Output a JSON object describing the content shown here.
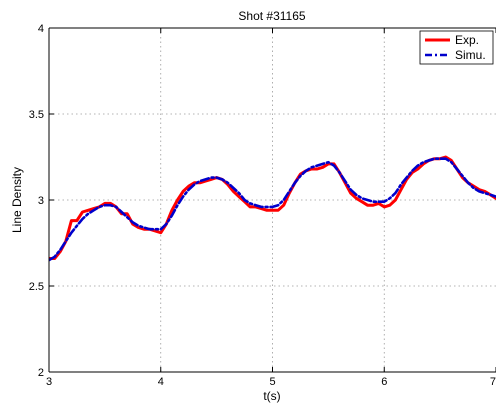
{
  "chart_data": {
    "type": "line",
    "title": "Shot #31165",
    "xlabel": "t(s)",
    "ylabel": "Line Density",
    "xlim": [
      3,
      7
    ],
    "ylim": [
      2,
      4
    ],
    "xticks": [
      "3",
      "4",
      "5",
      "6",
      "7"
    ],
    "yticks": [
      "2",
      "2.5",
      "3",
      "3.5",
      "4"
    ],
    "grid": true,
    "legend_position": "top-right",
    "series": [
      {
        "name": "Exp.",
        "color": "#ff0000",
        "style": "solid",
        "x": [
          3.0,
          3.05,
          3.1,
          3.15,
          3.2,
          3.25,
          3.3,
          3.35,
          3.4,
          3.45,
          3.5,
          3.55,
          3.6,
          3.65,
          3.7,
          3.75,
          3.8,
          3.85,
          3.9,
          3.95,
          4.0,
          4.05,
          4.1,
          4.15,
          4.2,
          4.25,
          4.3,
          4.35,
          4.4,
          4.45,
          4.5,
          4.55,
          4.6,
          4.65,
          4.7,
          4.75,
          4.8,
          4.85,
          4.9,
          4.95,
          5.0,
          5.05,
          5.1,
          5.15,
          5.2,
          5.25,
          5.3,
          5.35,
          5.4,
          5.45,
          5.5,
          5.55,
          5.6,
          5.65,
          5.7,
          5.75,
          5.8,
          5.85,
          5.9,
          5.95,
          6.0,
          6.05,
          6.1,
          6.15,
          6.2,
          6.25,
          6.3,
          6.35,
          6.4,
          6.45,
          6.5,
          6.55,
          6.6,
          6.65,
          6.7,
          6.75,
          6.8,
          6.85,
          6.9,
          6.95,
          7.0
        ],
        "y": [
          2.66,
          2.66,
          2.7,
          2.76,
          2.88,
          2.88,
          2.93,
          2.94,
          2.95,
          2.96,
          2.98,
          2.98,
          2.96,
          2.92,
          2.92,
          2.86,
          2.84,
          2.83,
          2.83,
          2.82,
          2.81,
          2.86,
          2.94,
          3.0,
          3.05,
          3.08,
          3.1,
          3.1,
          3.11,
          3.12,
          3.13,
          3.12,
          3.09,
          3.05,
          3.02,
          2.99,
          2.96,
          2.96,
          2.95,
          2.94,
          2.94,
          2.94,
          2.97,
          3.04,
          3.1,
          3.15,
          3.17,
          3.18,
          3.18,
          3.19,
          3.21,
          3.21,
          3.16,
          3.1,
          3.04,
          3.01,
          2.99,
          2.97,
          2.97,
          2.98,
          2.96,
          2.97,
          3.0,
          3.06,
          3.12,
          3.16,
          3.18,
          3.21,
          3.23,
          3.24,
          3.24,
          3.25,
          3.23,
          3.18,
          3.13,
          3.1,
          3.08,
          3.06,
          3.05,
          3.03,
          3.01
        ]
      },
      {
        "name": "Simu.",
        "color": "#0000cc",
        "style": "dashdot",
        "x": [
          3.0,
          3.05,
          3.1,
          3.15,
          3.2,
          3.25,
          3.3,
          3.35,
          3.4,
          3.45,
          3.5,
          3.55,
          3.6,
          3.65,
          3.7,
          3.75,
          3.8,
          3.85,
          3.9,
          3.95,
          4.0,
          4.05,
          4.1,
          4.15,
          4.2,
          4.25,
          4.3,
          4.35,
          4.4,
          4.45,
          4.5,
          4.55,
          4.6,
          4.65,
          4.7,
          4.75,
          4.8,
          4.85,
          4.9,
          4.95,
          5.0,
          5.05,
          5.1,
          5.15,
          5.2,
          5.25,
          5.3,
          5.35,
          5.4,
          5.45,
          5.5,
          5.55,
          5.6,
          5.65,
          5.7,
          5.75,
          5.8,
          5.85,
          5.9,
          5.95,
          6.0,
          6.05,
          6.1,
          6.15,
          6.2,
          6.25,
          6.3,
          6.35,
          6.4,
          6.45,
          6.5,
          6.55,
          6.6,
          6.65,
          6.7,
          6.75,
          6.8,
          6.85,
          6.9,
          6.95,
          7.0
        ],
        "y": [
          2.65,
          2.67,
          2.71,
          2.76,
          2.81,
          2.85,
          2.89,
          2.92,
          2.94,
          2.96,
          2.97,
          2.97,
          2.96,
          2.93,
          2.9,
          2.87,
          2.85,
          2.84,
          2.83,
          2.83,
          2.83,
          2.86,
          2.91,
          2.97,
          3.02,
          3.06,
          3.09,
          3.11,
          3.12,
          3.13,
          3.13,
          3.12,
          3.1,
          3.07,
          3.04,
          3.0,
          2.98,
          2.97,
          2.96,
          2.96,
          2.96,
          2.97,
          3.0,
          3.05,
          3.1,
          3.14,
          3.17,
          3.19,
          3.2,
          3.21,
          3.22,
          3.2,
          3.16,
          3.11,
          3.06,
          3.03,
          3.01,
          3.0,
          2.99,
          2.99,
          2.99,
          3.01,
          3.04,
          3.09,
          3.13,
          3.17,
          3.2,
          3.22,
          3.23,
          3.24,
          3.24,
          3.24,
          3.22,
          3.18,
          3.14,
          3.1,
          3.07,
          3.05,
          3.04,
          3.03,
          3.02
        ]
      }
    ]
  }
}
